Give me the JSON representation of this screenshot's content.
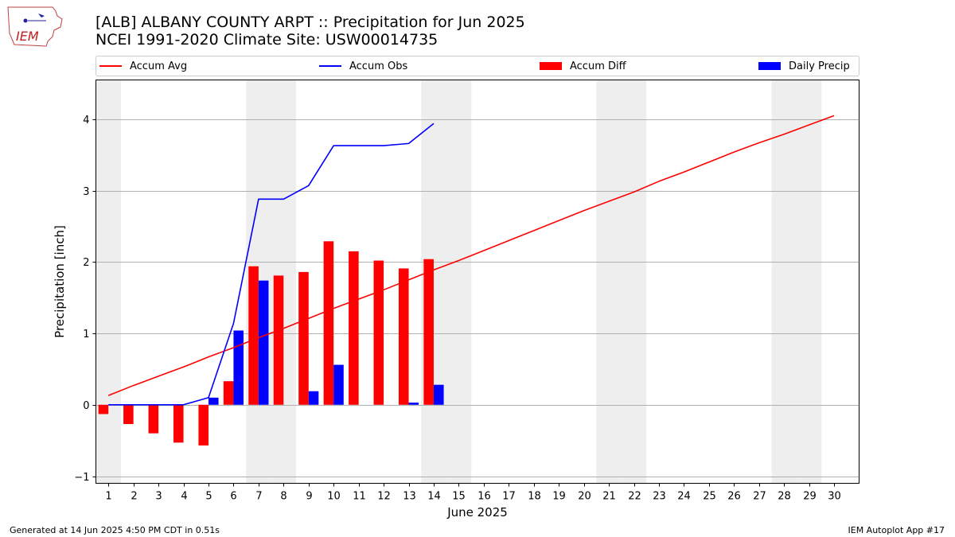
{
  "header": {
    "title": "[ALB] ALBANY COUNTY ARPT :: Precipitation for Jun 2025",
    "subtitle": "NCEI 1991-2020 Climate Site: USW00014735"
  },
  "logo": {
    "text": "IEM",
    "icon": "iowa-state-outline-icon"
  },
  "footer": {
    "generated": "Generated at 14 Jun 2025 4:50 PM CDT in 0.51s",
    "app": "IEM Autoplot App #17"
  },
  "legend": {
    "placement": "top",
    "items": [
      {
        "label": "Accum Avg",
        "kind": "line",
        "color": "#ff0000"
      },
      {
        "label": "Accum Obs",
        "kind": "line",
        "color": "#0000ff"
      },
      {
        "label": "Accum Diff",
        "kind": "bar",
        "color": "#ff0000"
      },
      {
        "label": "Daily Precip",
        "kind": "bar",
        "color": "#0000ff"
      }
    ]
  },
  "chart_data": {
    "type": "bar",
    "title": "[ALB] ALBANY COUNTY ARPT :: Precipitation for Jun 2025",
    "subtitle": "NCEI 1991-2020 Climate Site: USW00014735",
    "xlabel": "June 2025",
    "ylabel": "Precipitation [inch]",
    "ylim": [
      -1.1,
      4.55
    ],
    "xlim": [
      0.5,
      31.0
    ],
    "yticks": [
      -1,
      0,
      1,
      2,
      3,
      4
    ],
    "grid": "horizontal",
    "colors": {
      "avg": "#ff0000",
      "obs": "#0000ff",
      "diff": "#ff0000",
      "daily": "#0000ff",
      "weekend": "#eeeeee"
    },
    "weekend_days": [
      1,
      7,
      8,
      14,
      15,
      21,
      22,
      28,
      29
    ],
    "days": [
      1,
      2,
      3,
      4,
      5,
      6,
      7,
      8,
      9,
      10,
      11,
      12,
      13,
      14,
      15,
      16,
      17,
      18,
      19,
      20,
      21,
      22,
      23,
      24,
      25,
      26,
      27,
      28,
      29,
      30
    ],
    "series": [
      {
        "name": "Accum Avg",
        "type": "line",
        "color": "#ff0000",
        "values": [
          0.13,
          0.27,
          0.4,
          0.53,
          0.67,
          0.8,
          0.94,
          1.07,
          1.21,
          1.35,
          1.48,
          1.61,
          1.75,
          1.89,
          2.02,
          2.16,
          2.3,
          2.44,
          2.58,
          2.72,
          2.85,
          2.98,
          3.13,
          3.26,
          3.4,
          3.54,
          3.67,
          3.79,
          3.92,
          4.05
        ]
      },
      {
        "name": "Accum Obs",
        "type": "line",
        "color": "#0000ff",
        "values": [
          0.0,
          0.0,
          0.0,
          0.0,
          0.1,
          1.14,
          2.88,
          2.88,
          3.07,
          3.63,
          3.63,
          3.63,
          3.66,
          3.94
        ]
      },
      {
        "name": "Accum Diff",
        "type": "bar",
        "color": "#ff0000",
        "values": [
          -0.13,
          -0.27,
          -0.4,
          -0.53,
          -0.57,
          0.33,
          1.94,
          1.81,
          1.86,
          2.29,
          2.15,
          2.02,
          1.91,
          2.04
        ]
      },
      {
        "name": "Daily Precip",
        "type": "bar",
        "color": "#0000ff",
        "values": [
          0.0,
          0.0,
          0.0,
          0.0,
          0.1,
          1.04,
          1.74,
          0.0,
          0.19,
          0.56,
          0.0,
          0.0,
          0.03,
          0.28
        ]
      }
    ]
  }
}
